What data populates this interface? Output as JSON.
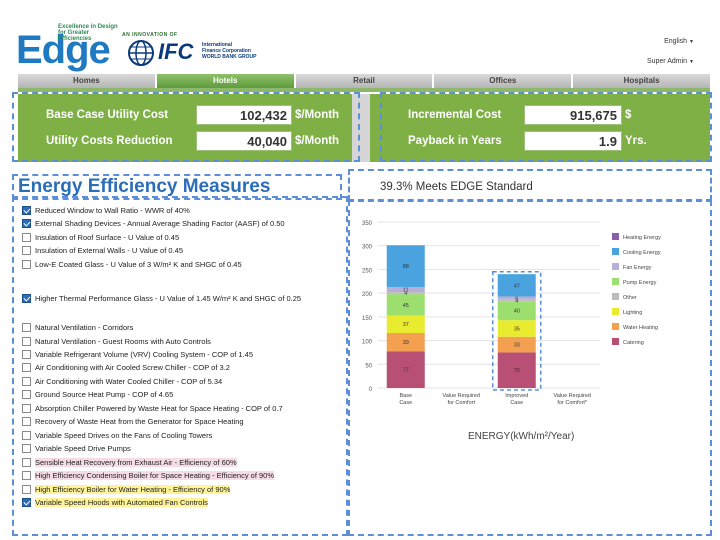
{
  "header": {
    "logo_word": "Edge",
    "logo_tagline": [
      "Excellence in Design",
      "for Greater Efficiencies"
    ],
    "innovation_label": "AN INNOVATION OF",
    "ifc_text": "IFC",
    "ifc_subtitle": [
      "International",
      "Finance Corporation",
      "WORLD BANK GROUP"
    ],
    "language": "English",
    "user": "Super Admin"
  },
  "tabs": [
    {
      "label": "Homes",
      "active": false
    },
    {
      "label": "Hotels",
      "active": true
    },
    {
      "label": "Retail",
      "active": false
    },
    {
      "label": "Offices",
      "active": false
    },
    {
      "label": "Hospitals",
      "active": false
    }
  ],
  "summary": {
    "base_case": {
      "label": "Base Case Utility Cost",
      "value": "102,432",
      "unit": "$/Month"
    },
    "reduction": {
      "label": "Utility Costs Reduction",
      "value": "40,040",
      "unit": "$/Month"
    },
    "incremental": {
      "label": "Incremental Cost",
      "value": "915,675",
      "unit": "$"
    },
    "payback": {
      "label": "Payback in Years",
      "value": "1.9",
      "unit": "Yrs."
    }
  },
  "title": "Energy Efficiency Measures",
  "score": "39.3%   Meets EDGE Standard",
  "measures": [
    {
      "label": "Reduced Window to Wall Ratio - WWR of 40%",
      "checked": true,
      "highlight": ""
    },
    {
      "label": "External Shading Devices - Annual Average Shading Factor (AASF) of 0.50",
      "checked": true,
      "highlight": ""
    },
    {
      "label": "Insulation of Roof Surface - U Value of 0.45",
      "checked": false,
      "highlight": ""
    },
    {
      "label": "Insulation of External Walls - U Value of 0.45",
      "checked": false,
      "highlight": ""
    },
    {
      "label": "Low-E Coated Glass - U Value of 3 W/m² K and SHGC of 0.45",
      "checked": false,
      "highlight": ""
    },
    {
      "label": "Higher Thermal Performance Glass - U Value of 1.45 W/m² K and SHGC of 0.25",
      "checked": true,
      "highlight": ""
    },
    {
      "label": "Natural Ventilation - Corridors",
      "checked": false,
      "highlight": ""
    },
    {
      "label": "Natural Ventilation - Guest Rooms with Auto Controls",
      "checked": false,
      "highlight": ""
    },
    {
      "label": "Variable Refrigerant Volume (VRV) Cooling System - COP of 1.45",
      "checked": false,
      "highlight": ""
    },
    {
      "label": "Air Conditioning with Air Cooled Screw Chiller - COP of 3.2",
      "checked": false,
      "highlight": ""
    },
    {
      "label": "Air Conditioning with Water Cooled Chiller - COP of 5.34",
      "checked": false,
      "highlight": ""
    },
    {
      "label": "Ground Source Heat Pump - COP of 4.65",
      "checked": false,
      "highlight": ""
    },
    {
      "label": "Absorption Chiller Powered by Waste Heat for Space Heating - COP of 0.7",
      "checked": false,
      "highlight": ""
    },
    {
      "label": "Recovery of Waste Heat from the Generator for Space Heating",
      "checked": false,
      "highlight": ""
    },
    {
      "label": "Variable Speed Drives on the Fans of Cooling Towers",
      "checked": false,
      "highlight": ""
    },
    {
      "label": "Variable Speed Drive Pumps",
      "checked": false,
      "highlight": ""
    },
    {
      "label": "Sensible Heat Recovery from Exhaust Air - Efficiency of 60%",
      "checked": false,
      "highlight": "pink"
    },
    {
      "label": "High Efficiency Condensing Boiler for Space Heating - Efficiency of 90%",
      "checked": false,
      "highlight": "pink"
    },
    {
      "label": "High Efficiency Boiler for Water Heating - Efficiency of 90%",
      "checked": false,
      "highlight": "yellow"
    },
    {
      "label": "Variable Speed Hoods with Automated Fan Controls",
      "checked": true,
      "highlight": "yellow"
    }
  ],
  "colors": {
    "accent": "#2a6db8",
    "panel_green": "#7fb046",
    "Heating Energy": "#8a5fa8",
    "Cooling Energy": "#4aa3df",
    "Fan Energy": "#b7b0d6",
    "Pump Energy": "#9ddf6f",
    "Other": "#bdbdbd",
    "Lighting": "#e9ec2e",
    "Water Heating": "#f3a150",
    "Catering": "#b84f74"
  },
  "chart_data": {
    "type": "bar",
    "stacked": true,
    "xlabel": "ENERGY(kWh/m²/Year)",
    "ylabel": "",
    "ylim": [
      0,
      350
    ],
    "yticks": [
      0,
      50,
      100,
      150,
      200,
      250,
      300,
      350
    ],
    "categories": [
      "Base Case",
      "Value Required for Comfort",
      "Improved Case",
      "Value Required for Comfort*"
    ],
    "series": [
      {
        "name": "Catering",
        "values": [
          77,
          0,
          75,
          0
        ],
        "labels": [
          "77",
          "",
          "75",
          ""
        ]
      },
      {
        "name": "Water Heating",
        "values": [
          39,
          0,
          33,
          0
        ],
        "labels": [
          "39",
          "",
          "33",
          ""
        ]
      },
      {
        "name": "Lighting",
        "values": [
          37,
          0,
          35,
          0
        ],
        "labels": [
          "37",
          "",
          "35",
          ""
        ]
      },
      {
        "name": "Pump Energy",
        "values": [
          45,
          0,
          40,
          0
        ],
        "labels": [
          "45",
          "",
          "40",
          ""
        ]
      },
      {
        "name": "Other",
        "values": [
          4,
          0,
          4,
          0
        ],
        "labels": [
          "4",
          "",
          "4",
          ""
        ]
      },
      {
        "name": "Fan Energy",
        "values": [
          11,
          0,
          6,
          0
        ],
        "labels": [
          "11",
          "",
          "6",
          ""
        ]
      },
      {
        "name": "Cooling Energy",
        "values": [
          88,
          0,
          47,
          0
        ],
        "labels": [
          "88",
          "",
          "47",
          ""
        ]
      },
      {
        "name": "Heating Energy",
        "values": [
          0,
          0,
          0,
          0
        ],
        "labels": [
          "",
          "",
          "",
          ""
        ]
      }
    ],
    "legend": [
      "Heating Energy",
      "Cooling Energy",
      "Fan Energy",
      "Pump Energy",
      "Other",
      "Lighting",
      "Water Heating",
      "Catering"
    ],
    "legend_position": "right"
  }
}
